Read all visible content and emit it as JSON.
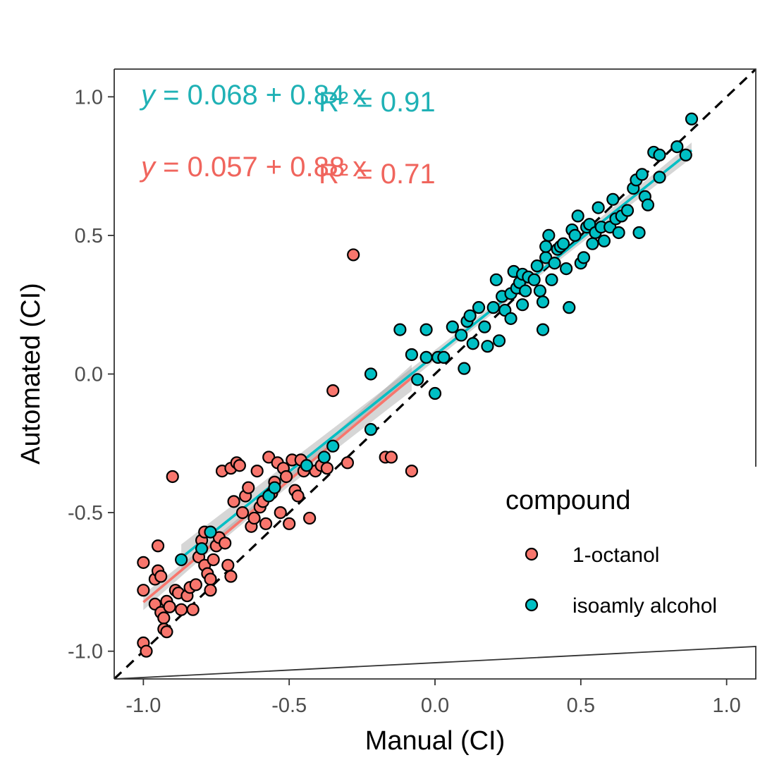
{
  "chart_data": {
    "type": "scatter",
    "xlabel": "Manual (CI)",
    "ylabel": "Automated (CI)",
    "xlim": [
      -1.1,
      1.1
    ],
    "ylim": [
      -1.1,
      1.1
    ],
    "x_ticks": [
      -1.0,
      -0.5,
      0.0,
      0.5,
      1.0
    ],
    "x_tick_labels": [
      "-1.0",
      "-0.5",
      "0.0",
      "0.5",
      "1.0"
    ],
    "y_ticks": [
      -1.0,
      -0.5,
      0.0,
      0.5,
      1.0
    ],
    "y_tick_labels": [
      "-1.0",
      "-0.5",
      "0.0",
      "0.5",
      "1.0"
    ],
    "grid": false,
    "reference_line": {
      "type": "identity",
      "style": "dashed",
      "color": "#000000"
    },
    "legend": {
      "title": "compound",
      "placement": "bottom-right",
      "entries": [
        {
          "label": "1-octanol",
          "color": "#F8766D"
        },
        {
          "label": "isoamly alcohol",
          "color": "#00BFC4"
        }
      ]
    },
    "annotations": [
      {
        "prefix": "y",
        "formula": " = 0.068 + 0.84 x",
        "r2_text": "R² = 0.91",
        "color": "#1FB1B5",
        "row": 1
      },
      {
        "prefix": "y",
        "formula": " = 0.057 + 0.88 x",
        "r2_text": "R² = 0.71",
        "color": "#F0655D",
        "row": 2
      }
    ],
    "series": [
      {
        "name": "1-octanol",
        "color": "#F8766D",
        "fit": {
          "intercept": 0.057,
          "slope": 0.88,
          "x_range": [
            -1.0,
            -0.08
          ]
        },
        "points": [
          [
            -1.0,
            -0.97
          ],
          [
            -0.99,
            -1.0
          ],
          [
            -1.0,
            -0.68
          ],
          [
            -1.0,
            -0.78
          ],
          [
            -0.96,
            -0.74
          ],
          [
            -0.96,
            -0.83
          ],
          [
            -0.95,
            -0.62
          ],
          [
            -0.95,
            -0.71
          ],
          [
            -0.94,
            -0.73
          ],
          [
            -0.94,
            -0.86
          ],
          [
            -0.93,
            -0.88
          ],
          [
            -0.93,
            -0.92
          ],
          [
            -0.92,
            -0.82
          ],
          [
            -0.92,
            -0.93
          ],
          [
            -0.91,
            -0.84
          ],
          [
            -0.9,
            -0.37
          ],
          [
            -0.89,
            -0.78
          ],
          [
            -0.88,
            -0.79
          ],
          [
            -0.87,
            -0.85
          ],
          [
            -0.85,
            -0.8
          ],
          [
            -0.84,
            -0.77
          ],
          [
            -0.83,
            -0.85
          ],
          [
            -0.82,
            -0.76
          ],
          [
            -0.81,
            -0.66
          ],
          [
            -0.8,
            -0.6
          ],
          [
            -0.79,
            -0.57
          ],
          [
            -0.79,
            -0.69
          ],
          [
            -0.78,
            -0.72
          ],
          [
            -0.77,
            -0.74
          ],
          [
            -0.77,
            -0.78
          ],
          [
            -0.76,
            -0.67
          ],
          [
            -0.75,
            -0.62
          ],
          [
            -0.74,
            -0.59
          ],
          [
            -0.73,
            -0.35
          ],
          [
            -0.72,
            -0.61
          ],
          [
            -0.71,
            -0.69
          ],
          [
            -0.7,
            -0.73
          ],
          [
            -0.7,
            -0.34
          ],
          [
            -0.69,
            -0.46
          ],
          [
            -0.68,
            -0.32
          ],
          [
            -0.67,
            -0.33
          ],
          [
            -0.66,
            -0.5
          ],
          [
            -0.65,
            -0.44
          ],
          [
            -0.64,
            -0.41
          ],
          [
            -0.63,
            -0.55
          ],
          [
            -0.62,
            -0.52
          ],
          [
            -0.61,
            -0.35
          ],
          [
            -0.6,
            -0.48
          ],
          [
            -0.59,
            -0.46
          ],
          [
            -0.58,
            -0.54
          ],
          [
            -0.57,
            -0.3
          ],
          [
            -0.56,
            -0.43
          ],
          [
            -0.55,
            -0.39
          ],
          [
            -0.54,
            -0.32
          ],
          [
            -0.53,
            -0.5
          ],
          [
            -0.52,
            -0.34
          ],
          [
            -0.51,
            -0.37
          ],
          [
            -0.5,
            -0.54
          ],
          [
            -0.49,
            -0.31
          ],
          [
            -0.48,
            -0.42
          ],
          [
            -0.47,
            -0.44
          ],
          [
            -0.46,
            -0.31
          ],
          [
            -0.45,
            -0.35
          ],
          [
            -0.43,
            -0.52
          ],
          [
            -0.41,
            -0.35
          ],
          [
            -0.39,
            -0.33
          ],
          [
            -0.37,
            -0.34
          ],
          [
            -0.35,
            -0.06
          ],
          [
            -0.3,
            -0.32
          ],
          [
            -0.28,
            0.43
          ],
          [
            -0.17,
            -0.3
          ],
          [
            -0.15,
            -0.3
          ],
          [
            -0.08,
            -0.35
          ]
        ]
      },
      {
        "name": "isoamly alcohol",
        "color": "#00BFC4",
        "fit": {
          "intercept": 0.068,
          "slope": 0.84,
          "x_range": [
            -0.87,
            0.88
          ]
        },
        "points": [
          [
            -0.87,
            -0.67
          ],
          [
            -0.8,
            -0.63
          ],
          [
            -0.77,
            -0.57
          ],
          [
            -0.57,
            -0.44
          ],
          [
            -0.55,
            -0.41
          ],
          [
            -0.44,
            -0.33
          ],
          [
            -0.38,
            -0.3
          ],
          [
            -0.35,
            -0.26
          ],
          [
            -0.22,
            -0.2
          ],
          [
            -0.22,
            0.0
          ],
          [
            -0.12,
            0.16
          ],
          [
            -0.08,
            0.07
          ],
          [
            -0.06,
            -0.02
          ],
          [
            -0.03,
            0.06
          ],
          [
            -0.03,
            0.16
          ],
          [
            0.0,
            -0.07
          ],
          [
            0.01,
            0.06
          ],
          [
            0.03,
            0.06
          ],
          [
            0.06,
            0.17
          ],
          [
            0.09,
            0.14
          ],
          [
            0.1,
            0.02
          ],
          [
            0.11,
            0.19
          ],
          [
            0.12,
            0.21
          ],
          [
            0.13,
            0.11
          ],
          [
            0.15,
            0.24
          ],
          [
            0.17,
            0.17
          ],
          [
            0.18,
            0.1
          ],
          [
            0.2,
            0.24
          ],
          [
            0.21,
            0.34
          ],
          [
            0.22,
            0.12
          ],
          [
            0.23,
            0.28
          ],
          [
            0.24,
            0.23
          ],
          [
            0.26,
            0.29
          ],
          [
            0.26,
            0.2
          ],
          [
            0.27,
            0.37
          ],
          [
            0.28,
            0.31
          ],
          [
            0.29,
            0.33
          ],
          [
            0.3,
            0.25
          ],
          [
            0.3,
            0.36
          ],
          [
            0.31,
            0.3
          ],
          [
            0.32,
            0.35
          ],
          [
            0.34,
            0.34
          ],
          [
            0.35,
            0.39
          ],
          [
            0.36,
            0.3
          ],
          [
            0.37,
            0.26
          ],
          [
            0.37,
            0.16
          ],
          [
            0.38,
            0.42
          ],
          [
            0.38,
            0.46
          ],
          [
            0.39,
            0.5
          ],
          [
            0.4,
            0.34
          ],
          [
            0.41,
            0.4
          ],
          [
            0.42,
            0.45
          ],
          [
            0.43,
            0.46
          ],
          [
            0.44,
            0.47
          ],
          [
            0.45,
            0.38
          ],
          [
            0.46,
            0.24
          ],
          [
            0.47,
            0.52
          ],
          [
            0.48,
            0.5
          ],
          [
            0.49,
            0.57
          ],
          [
            0.5,
            0.4
          ],
          [
            0.51,
            0.42
          ],
          [
            0.52,
            0.53
          ],
          [
            0.53,
            0.54
          ],
          [
            0.54,
            0.47
          ],
          [
            0.55,
            0.51
          ],
          [
            0.56,
            0.6
          ],
          [
            0.57,
            0.53
          ],
          [
            0.58,
            0.48
          ],
          [
            0.6,
            0.53
          ],
          [
            0.61,
            0.63
          ],
          [
            0.62,
            0.56
          ],
          [
            0.63,
            0.51
          ],
          [
            0.64,
            0.57
          ],
          [
            0.66,
            0.59
          ],
          [
            0.68,
            0.67
          ],
          [
            0.69,
            0.7
          ],
          [
            0.7,
            0.51
          ],
          [
            0.71,
            0.72
          ],
          [
            0.72,
            0.64
          ],
          [
            0.73,
            0.61
          ],
          [
            0.75,
            0.8
          ],
          [
            0.77,
            0.79
          ],
          [
            0.77,
            0.71
          ],
          [
            0.83,
            0.82
          ],
          [
            0.86,
            0.79
          ],
          [
            0.88,
            0.92
          ]
        ]
      }
    ]
  }
}
